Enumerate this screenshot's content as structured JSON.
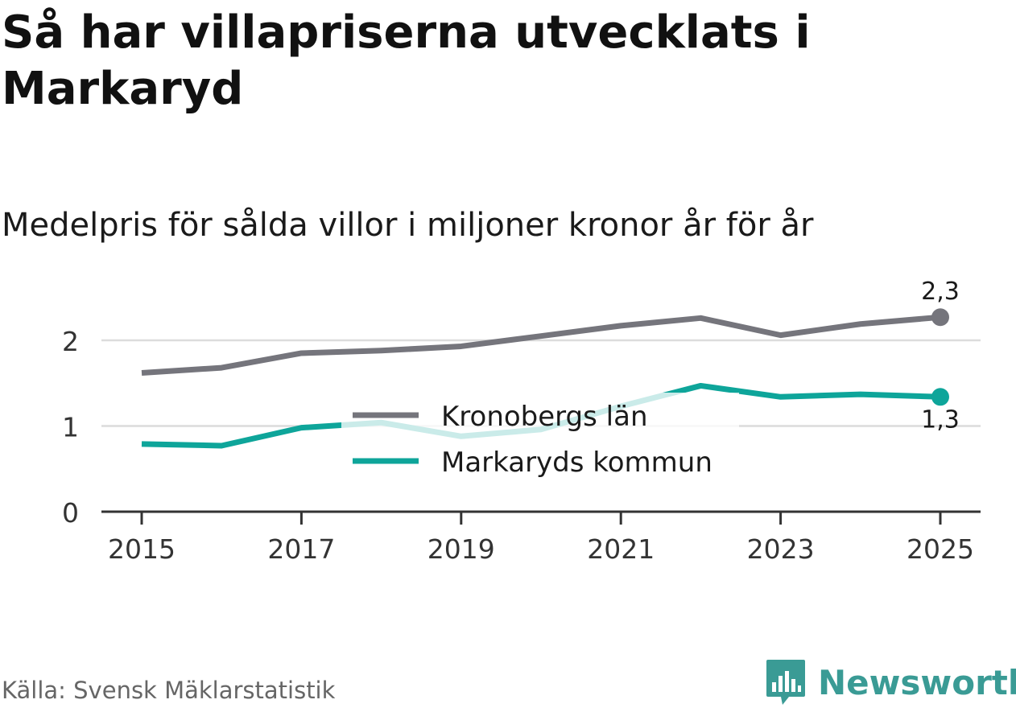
{
  "title": "Så har villapriserna utvecklats i Markaryd",
  "subtitle": "Medelpris för sålda villor i miljoner kronor år för år",
  "source": "Källa: Svensk Mäklarstatistik",
  "brand": "Newsworthy",
  "colors": {
    "series_lan": "#75757c",
    "series_kommun": "#0ea59a",
    "grid": "#dcdcdc",
    "axis": "#333333",
    "brand": "#3a9b95"
  },
  "chart_data": {
    "type": "line",
    "x": [
      2015,
      2016,
      2017,
      2018,
      2019,
      2020,
      2021,
      2022,
      2023,
      2024,
      2025
    ],
    "x_tick_labels": [
      "2015",
      "2017",
      "2019",
      "2021",
      "2023",
      "2025"
    ],
    "x_tick_values": [
      2015,
      2017,
      2019,
      2021,
      2023,
      2025
    ],
    "y_tick_labels": [
      "0",
      "1",
      "2"
    ],
    "y_tick_values": [
      0,
      1,
      2
    ],
    "ylim": [
      0,
      2.4
    ],
    "xlim": [
      2014.5,
      2025.5
    ],
    "grid": true,
    "legend_position": "center",
    "series": [
      {
        "name": "Kronobergs län",
        "values": [
          1.62,
          1.68,
          1.85,
          1.88,
          1.93,
          2.05,
          2.17,
          2.26,
          2.06,
          2.19,
          2.27
        ],
        "end_label": "2,3"
      },
      {
        "name": "Markaryds kommun",
        "values": [
          0.79,
          0.77,
          0.98,
          1.04,
          0.88,
          0.96,
          1.23,
          1.47,
          1.34,
          1.37,
          1.34
        ],
        "end_label": "1,3"
      }
    ]
  }
}
